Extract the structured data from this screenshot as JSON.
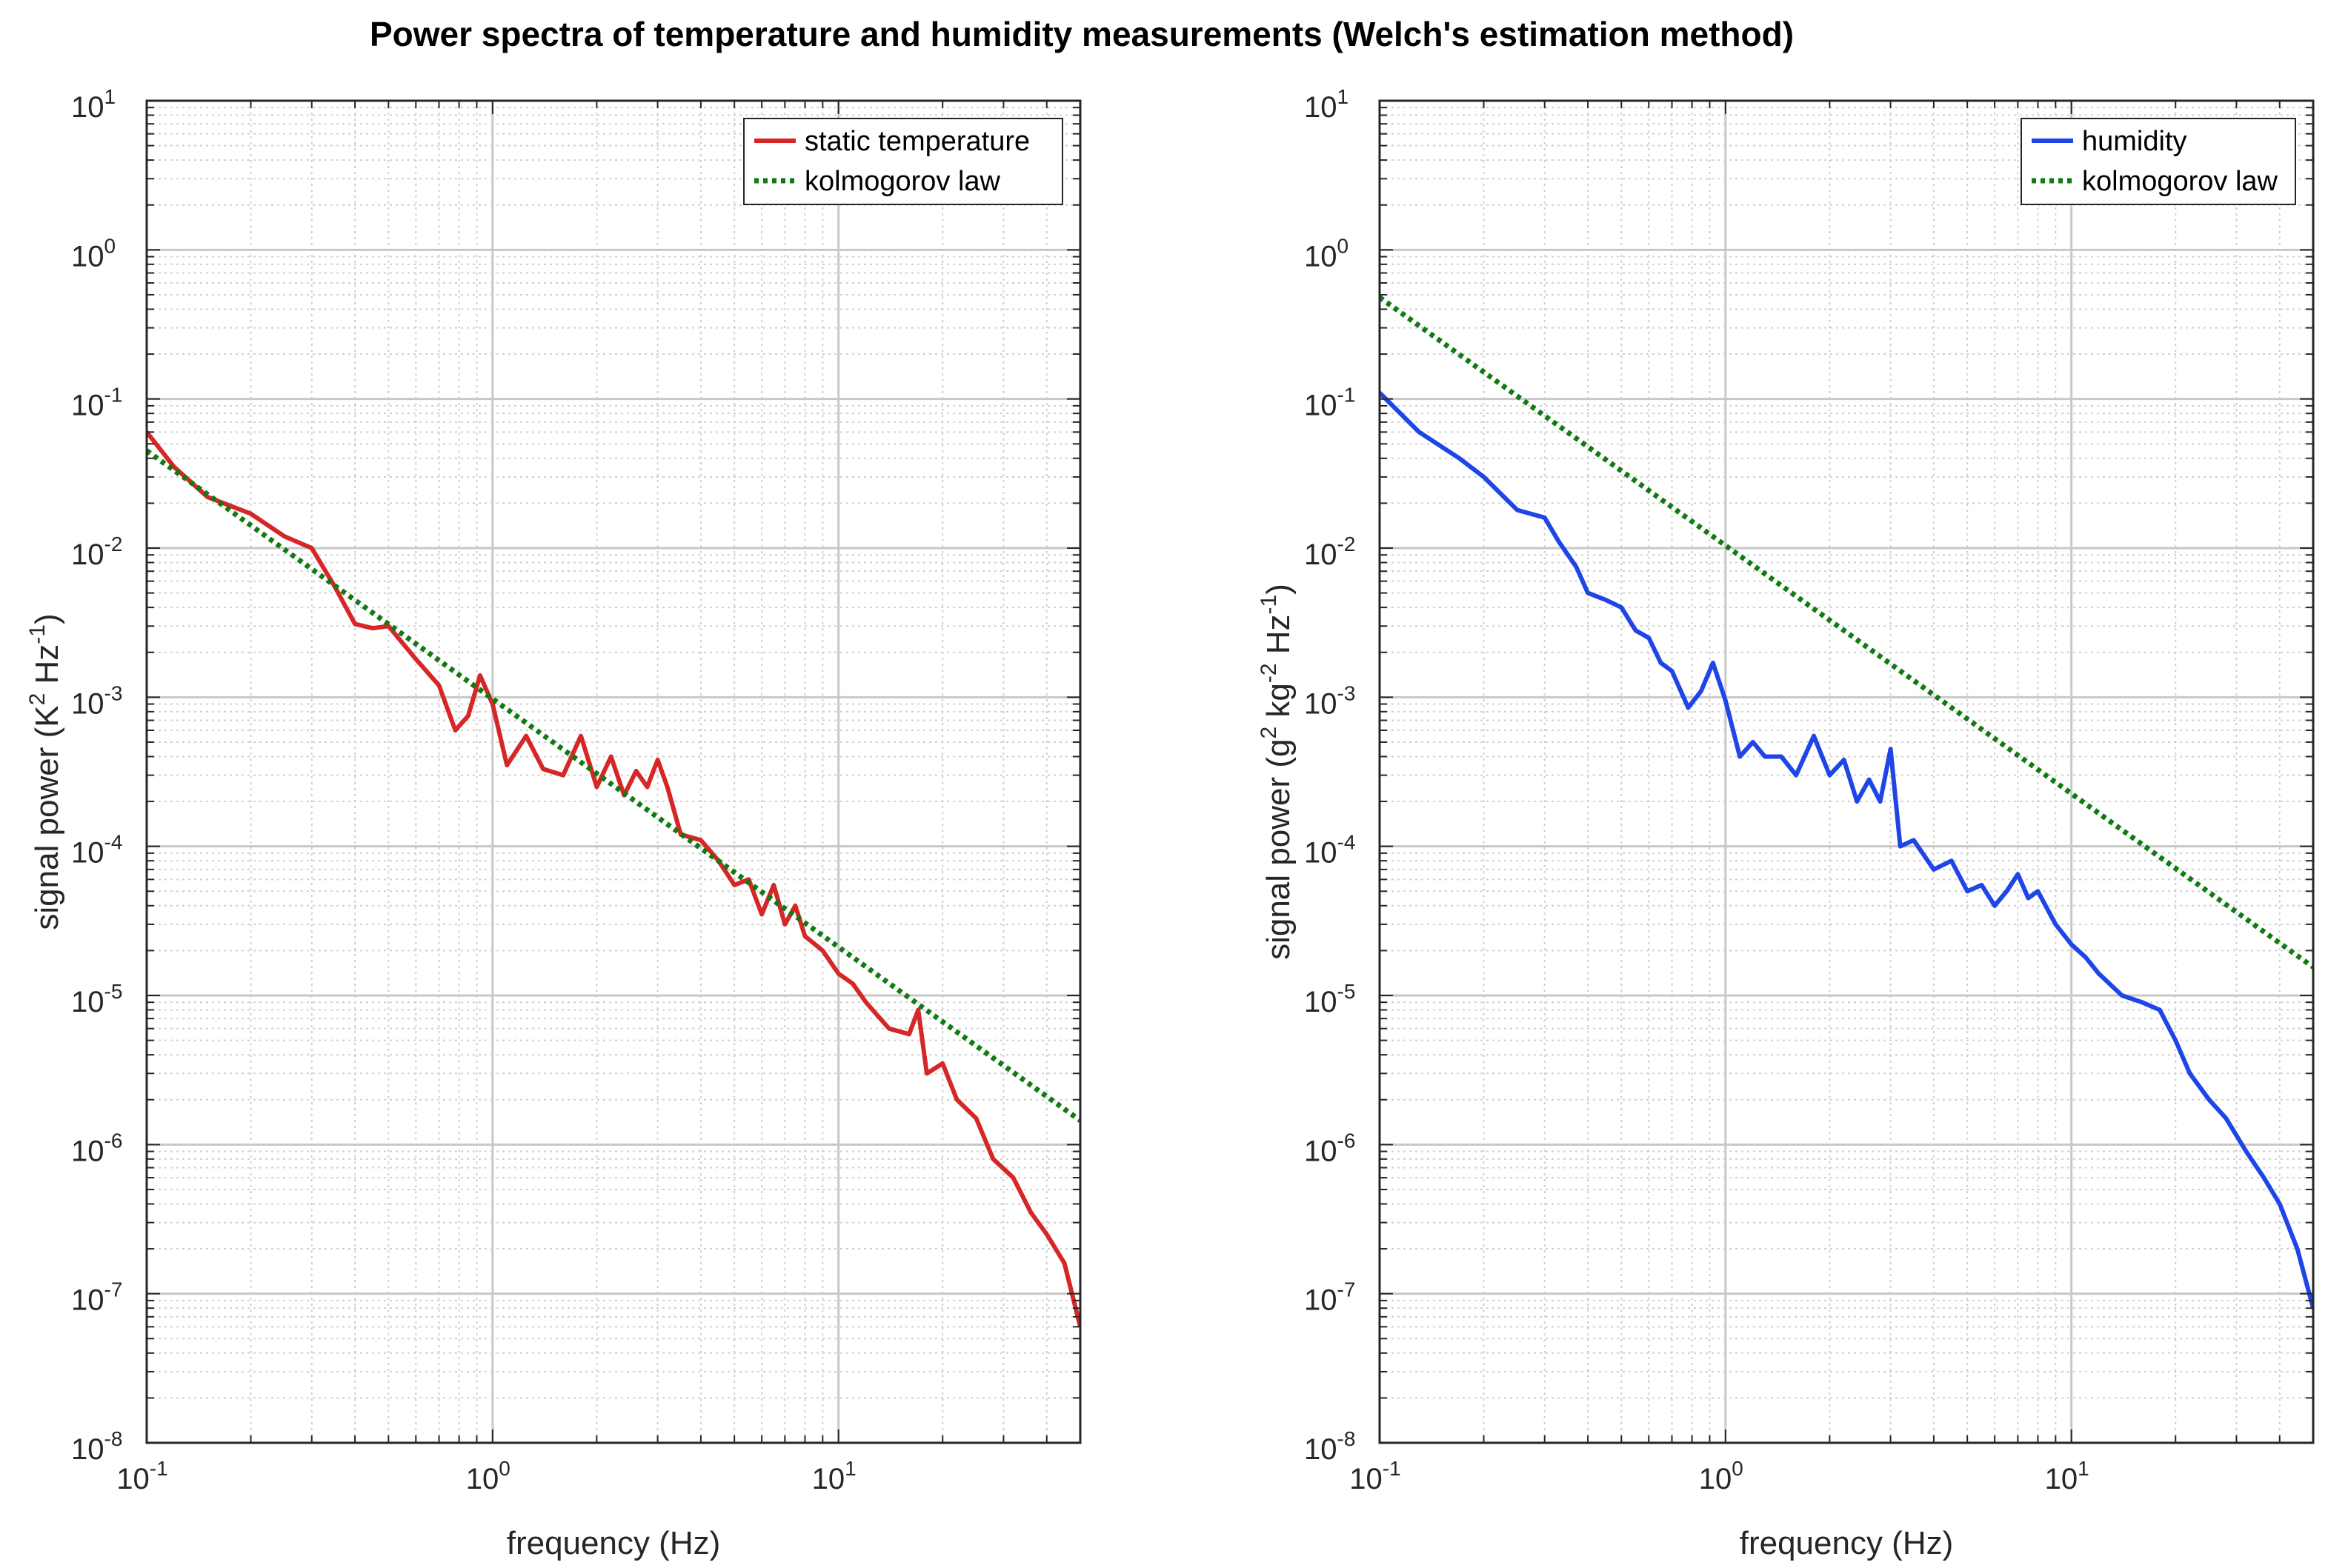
{
  "figure": {
    "title": "Power spectra of temperature and humidity measurements (Welch's estimation method)"
  },
  "chart_data": [
    {
      "type": "line",
      "xscale": "log",
      "yscale": "log",
      "xlim": [
        0.1,
        50
      ],
      "ylim": [
        1e-08,
        10
      ],
      "xlabel": "frequency (Hz)",
      "ylabel_parts": [
        "signal power (K",
        "2",
        " Hz",
        "-1",
        ")"
      ],
      "x_tick_labels": [
        {
          "value": 0.1,
          "base": "10",
          "exp": "-1"
        },
        {
          "value": 1,
          "base": "10",
          "exp": "0"
        },
        {
          "value": 10,
          "base": "10",
          "exp": "1"
        }
      ],
      "y_tick_labels": [
        {
          "value": 1e-08,
          "base": "10",
          "exp": "-8"
        },
        {
          "value": 1e-07,
          "base": "10",
          "exp": "-7"
        },
        {
          "value": 1e-06,
          "base": "10",
          "exp": "-6"
        },
        {
          "value": 1e-05,
          "base": "10",
          "exp": "-5"
        },
        {
          "value": 0.0001,
          "base": "10",
          "exp": "-4"
        },
        {
          "value": 0.001,
          "base": "10",
          "exp": "-3"
        },
        {
          "value": 0.01,
          "base": "10",
          "exp": "-2"
        },
        {
          "value": 0.1,
          "base": "10",
          "exp": "-1"
        },
        {
          "value": 1,
          "base": "10",
          "exp": "0"
        },
        {
          "value": 10,
          "base": "10",
          "exp": "1"
        }
      ],
      "grid": "major and minor",
      "legend_position": "top-right",
      "series": [
        {
          "name": "static temperature",
          "color": "#d62728",
          "style": "solid",
          "x": [
            0.1,
            0.12,
            0.15,
            0.2,
            0.25,
            0.3,
            0.35,
            0.4,
            0.45,
            0.5,
            0.6,
            0.7,
            0.78,
            0.85,
            0.92,
            1.0,
            1.1,
            1.25,
            1.4,
            1.6,
            1.8,
            2.0,
            2.2,
            2.4,
            2.6,
            2.8,
            3.0,
            3.2,
            3.5,
            4.0,
            4.5,
            5.0,
            5.5,
            6.0,
            6.5,
            7.0,
            7.5,
            8.0,
            9.0,
            10,
            11,
            12,
            14,
            16,
            17,
            18,
            20,
            22,
            25,
            28,
            32,
            36,
            40,
            45,
            50
          ],
          "y": [
            0.06,
            0.035,
            0.022,
            0.017,
            0.012,
            0.01,
            0.0055,
            0.0031,
            0.0029,
            0.003,
            0.0018,
            0.0012,
            0.0006,
            0.00075,
            0.0014,
            0.0009,
            0.00035,
            0.00055,
            0.00033,
            0.0003,
            0.00055,
            0.00025,
            0.0004,
            0.00022,
            0.00032,
            0.00025,
            0.00038,
            0.00025,
            0.00012,
            0.00011,
            8e-05,
            5.5e-05,
            6e-05,
            3.5e-05,
            5.5e-05,
            3e-05,
            4e-05,
            2.5e-05,
            2e-05,
            1.4e-05,
            1.2e-05,
            9e-06,
            6e-06,
            5.5e-06,
            8e-06,
            3e-06,
            3.5e-06,
            2e-06,
            1.5e-06,
            8e-07,
            6e-07,
            3.5e-07,
            2.5e-07,
            1.6e-07,
            6e-08
          ]
        },
        {
          "name": "kolmogorov law",
          "color": "#117a11",
          "style": "dotted",
          "x": [
            0.1,
            50
          ],
          "y": [
            0.045,
            1.45e-06
          ]
        }
      ]
    },
    {
      "type": "line",
      "xscale": "log",
      "yscale": "log",
      "xlim": [
        0.1,
        50
      ],
      "ylim": [
        1e-08,
        10
      ],
      "xlabel": "frequency (Hz)",
      "ylabel_parts": [
        "signal power (g",
        "2",
        " kg",
        "-2",
        " Hz",
        "-1",
        ")"
      ],
      "x_tick_labels": [
        {
          "value": 0.1,
          "base": "10",
          "exp": "-1"
        },
        {
          "value": 1,
          "base": "10",
          "exp": "0"
        },
        {
          "value": 10,
          "base": "10",
          "exp": "1"
        }
      ],
      "y_tick_labels": [
        {
          "value": 1e-08,
          "base": "10",
          "exp": "-8"
        },
        {
          "value": 1e-07,
          "base": "10",
          "exp": "-7"
        },
        {
          "value": 1e-06,
          "base": "10",
          "exp": "-6"
        },
        {
          "value": 1e-05,
          "base": "10",
          "exp": "-5"
        },
        {
          "value": 0.0001,
          "base": "10",
          "exp": "-4"
        },
        {
          "value": 0.001,
          "base": "10",
          "exp": "-3"
        },
        {
          "value": 0.01,
          "base": "10",
          "exp": "-2"
        },
        {
          "value": 0.1,
          "base": "10",
          "exp": "-1"
        },
        {
          "value": 1,
          "base": "10",
          "exp": "0"
        },
        {
          "value": 10,
          "base": "10",
          "exp": "1"
        }
      ],
      "grid": "major and minor",
      "legend_position": "top-right",
      "series": [
        {
          "name": "humidity",
          "color": "#1f45e6",
          "style": "solid",
          "x": [
            0.1,
            0.13,
            0.17,
            0.2,
            0.25,
            0.3,
            0.33,
            0.37,
            0.4,
            0.45,
            0.5,
            0.55,
            0.6,
            0.65,
            0.7,
            0.78,
            0.85,
            0.92,
            1.0,
            1.1,
            1.2,
            1.3,
            1.45,
            1.6,
            1.8,
            2.0,
            2.2,
            2.4,
            2.6,
            2.8,
            3.0,
            3.2,
            3.5,
            4.0,
            4.5,
            5.0,
            5.5,
            6.0,
            6.5,
            7.0,
            7.5,
            8.0,
            9.0,
            10,
            11,
            12,
            14,
            16,
            18,
            20,
            22,
            25,
            28,
            32,
            36,
            40,
            45,
            50
          ],
          "y": [
            0.11,
            0.06,
            0.04,
            0.03,
            0.018,
            0.016,
            0.011,
            0.0075,
            0.005,
            0.0045,
            0.004,
            0.0028,
            0.0025,
            0.0017,
            0.0015,
            0.00085,
            0.0011,
            0.0017,
            0.00095,
            0.0004,
            0.0005,
            0.0004,
            0.0004,
            0.0003,
            0.00055,
            0.0003,
            0.00038,
            0.0002,
            0.00028,
            0.0002,
            0.00045,
            0.0001,
            0.00011,
            7e-05,
            8e-05,
            5e-05,
            5.5e-05,
            4e-05,
            5e-05,
            6.5e-05,
            4.5e-05,
            5e-05,
            3e-05,
            2.2e-05,
            1.8e-05,
            1.4e-05,
            1e-05,
            9e-06,
            8e-06,
            5e-06,
            3e-06,
            2e-06,
            1.5e-06,
            9e-07,
            6e-07,
            4e-07,
            2e-07,
            8e-08
          ]
        },
        {
          "name": "kolmogorov law",
          "color": "#117a11",
          "style": "dotted",
          "x": [
            0.1,
            50
          ],
          "y": [
            0.48,
            1.55e-05
          ]
        }
      ]
    }
  ]
}
